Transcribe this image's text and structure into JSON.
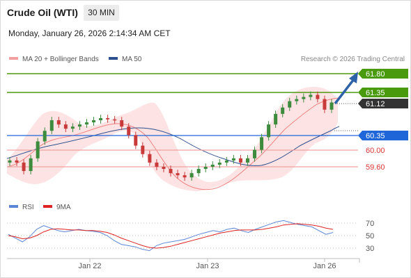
{
  "header": {
    "instrument": "Crude Oil (WTI)",
    "timeframe": "30 MIN",
    "datetime": "Monday, January 26, 2026 2:14:34 AM CET"
  },
  "legend": {
    "bollinger": "MA 20 + Bollinger Bands",
    "ma50": "MA 50",
    "copyright": "Research © 2026 Trading Central",
    "rsi": "RSI",
    "ma9": "9MA"
  },
  "colors": {
    "up_candle": "#3d8b3d",
    "down_candle": "#c93a3a",
    "bollinger_fill": "#fde3e3",
    "ma20_line": "#f08080",
    "ma50_line": "#2e4f8f",
    "target_green": "#4a9a0e",
    "pivot_blue": "#1f66d9",
    "support_red": "#e05050",
    "current_price": "#333333",
    "rsi_line": "#5b86d6",
    "rsi_ma": "#dd2222",
    "arrow": "#2e62a8"
  },
  "chart_data": {
    "type": "candlestick",
    "levels": [
      {
        "label": "61.80",
        "value": 61.8,
        "kind": "resistance"
      },
      {
        "label": "61.35",
        "value": 61.35,
        "kind": "resistance"
      },
      {
        "label": "61.12",
        "value": 61.12,
        "kind": "current"
      },
      {
        "label": "60.35",
        "value": 60.35,
        "kind": "pivot"
      },
      {
        "label": "60.00",
        "value": 60.0,
        "kind": "support"
      },
      {
        "label": "59.60",
        "value": 59.6,
        "kind": "support"
      }
    ],
    "x_ticks": [
      "Jan 22",
      "Jan 23",
      "Jan 26"
    ],
    "rsi_ticks": [
      "70",
      "50",
      "30"
    ],
    "close": [
      59.75,
      59.7,
      59.5,
      59.8,
      60.2,
      60.45,
      60.7,
      60.6,
      60.5,
      60.55,
      60.6,
      60.65,
      60.7,
      60.75,
      60.72,
      60.7,
      60.55,
      60.35,
      60.1,
      59.9,
      59.7,
      59.6,
      59.55,
      59.45,
      59.4,
      59.35,
      59.45,
      59.55,
      59.6,
      59.65,
      59.7,
      59.75,
      59.8,
      59.7,
      59.8,
      60.0,
      60.3,
      60.6,
      60.85,
      61.0,
      61.15,
      61.2,
      61.25,
      61.3,
      61.2,
      60.95,
      61.12
    ],
    "rsi": [
      52,
      46,
      40,
      48,
      60,
      66,
      62,
      58,
      56,
      58,
      60,
      58,
      57,
      55,
      50,
      42,
      36,
      34,
      32,
      28,
      26,
      34,
      38,
      40,
      42,
      44,
      48,
      52,
      55,
      58,
      56,
      60,
      62,
      58,
      55,
      60,
      64,
      68,
      72,
      74,
      71,
      68,
      66,
      64,
      58,
      52,
      55
    ],
    "rsi_ma": [
      50,
      48,
      45,
      46,
      50,
      56,
      60,
      61,
      60,
      59,
      59,
      58,
      58,
      57,
      55,
      51,
      46,
      42,
      38,
      34,
      31,
      30,
      31,
      33,
      36,
      39,
      42,
      45,
      48,
      51,
      54,
      56,
      58,
      59,
      59,
      59,
      60,
      62,
      64,
      67,
      68,
      69,
      68,
      67,
      65,
      62,
      60
    ]
  }
}
